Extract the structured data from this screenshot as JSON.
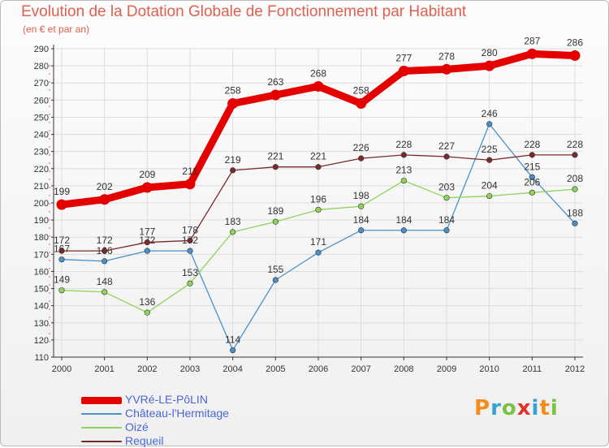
{
  "title": "Evolution de la Dotation Globale de Fonctionnement par Habitant",
  "subtitle": "(en € et par an)",
  "logo": {
    "letters": [
      "P",
      "r",
      "o",
      "x",
      "i",
      "t",
      "i"
    ],
    "colors": [
      "#f28c1e",
      "#3aa0d8",
      "#7cc242",
      "#e0322b",
      "#3aa0d8",
      "#f28c1e",
      "#7cc242"
    ]
  },
  "chart_data": {
    "type": "line",
    "title": "Evolution de la Dotation Globale de Fonctionnement par Habitant",
    "subtitle": "(en € et par an)",
    "xlabel": "",
    "ylabel": "",
    "ylim": [
      110,
      290
    ],
    "yticks": [
      110,
      120,
      130,
      140,
      150,
      160,
      170,
      180,
      190,
      200,
      210,
      220,
      230,
      240,
      250,
      260,
      270,
      280,
      290
    ],
    "categories": [
      "2000",
      "2001",
      "2002",
      "2003",
      "2004",
      "2005",
      "2006",
      "2007",
      "2008",
      "2009",
      "2010",
      "2011",
      "2012"
    ],
    "grid": true,
    "legend": "bottom-left",
    "series": [
      {
        "name": "Château-l'Hermitage",
        "color": "#4a90c8",
        "values": [
          167,
          166,
          172,
          172,
          114,
          155,
          171,
          184,
          184,
          184,
          246,
          215,
          188
        ],
        "labels": [
          "167",
          "166",
          "172",
          "172",
          "114",
          "155",
          "171",
          "184",
          "184",
          "184",
          "246",
          "215",
          "188"
        ]
      },
      {
        "name": "Oizé",
        "color": "#8fd35a",
        "values": [
          149,
          148,
          136,
          153,
          183,
          189,
          196,
          198,
          213,
          203,
          204,
          206,
          208
        ],
        "labels": [
          "149",
          "148",
          "136",
          "153",
          "183",
          "189",
          "196",
          "198",
          "213",
          "203",
          "204",
          "206",
          "208"
        ]
      },
      {
        "name": "Requeil",
        "color": "#7a2a2a",
        "values": [
          172,
          172,
          177,
          178,
          219,
          221,
          221,
          226,
          228,
          227,
          225,
          228,
          228
        ],
        "labels": [
          "172",
          "172",
          "177",
          "178",
          "219",
          "221",
          "221",
          "226",
          "228",
          "227",
          "225",
          "228",
          "228"
        ]
      },
      {
        "name": "YVRé-LE-PôLIN",
        "color": "#e50000",
        "values": [
          199,
          202,
          209,
          211,
          258,
          263,
          268,
          258,
          277,
          278,
          280,
          287,
          286
        ],
        "labels": [
          "199",
          "202",
          "209",
          "211",
          "258",
          "263",
          "268",
          "258",
          "277",
          "278",
          "280",
          "287",
          "286"
        ]
      }
    ],
    "legend_order": [
      "YVRé-LE-PôLIN",
      "Château-l'Hermitage",
      "Oizé",
      "Requeil"
    ]
  }
}
